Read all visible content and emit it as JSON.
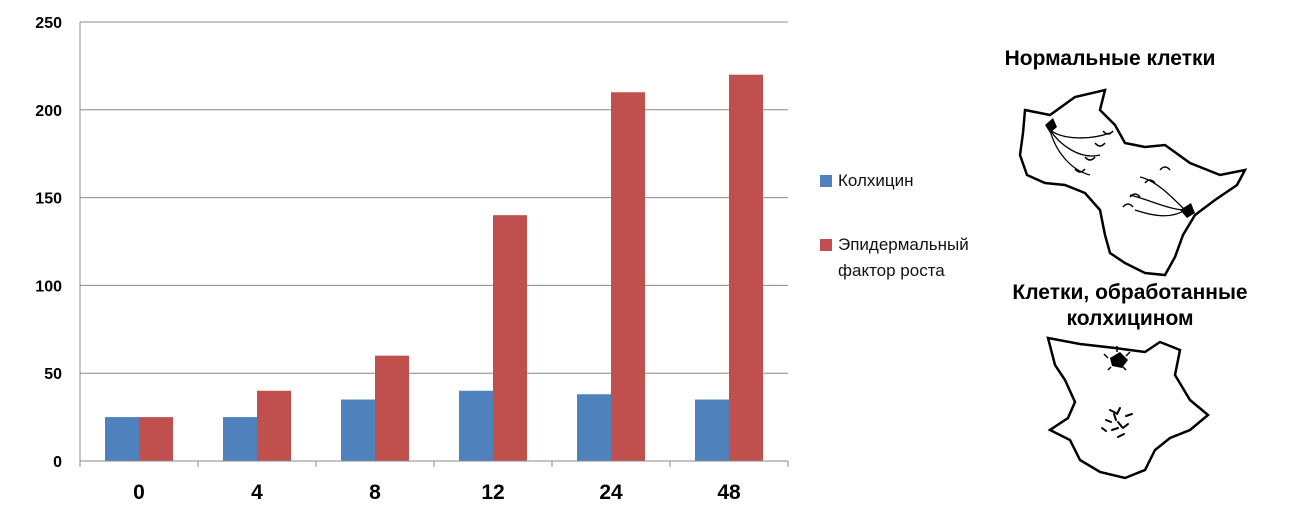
{
  "chart_data": {
    "type": "bar",
    "categories": [
      "0",
      "4",
      "8",
      "12",
      "24",
      "48"
    ],
    "series": [
      {
        "name": "Колхицин",
        "color": "#4f81bd",
        "values": [
          25,
          25,
          35,
          40,
          38,
          35
        ]
      },
      {
        "name": "Эпидермальный фактор роста",
        "color": "#c0504d",
        "values": [
          25,
          40,
          60,
          140,
          210,
          220
        ]
      }
    ],
    "ylim": [
      0,
      250
    ],
    "yticks": [
      0,
      50,
      100,
      150,
      200,
      250
    ],
    "grid": true,
    "legend_position": "right",
    "title": "",
    "xlabel": "",
    "ylabel": ""
  },
  "legend": {
    "item1": "Колхицин",
    "item2": "Эпидермальный фактор роста"
  },
  "images": {
    "normal_title": "Нормальные клетки",
    "treated_title": "Клетки, обработанные колхицином"
  }
}
